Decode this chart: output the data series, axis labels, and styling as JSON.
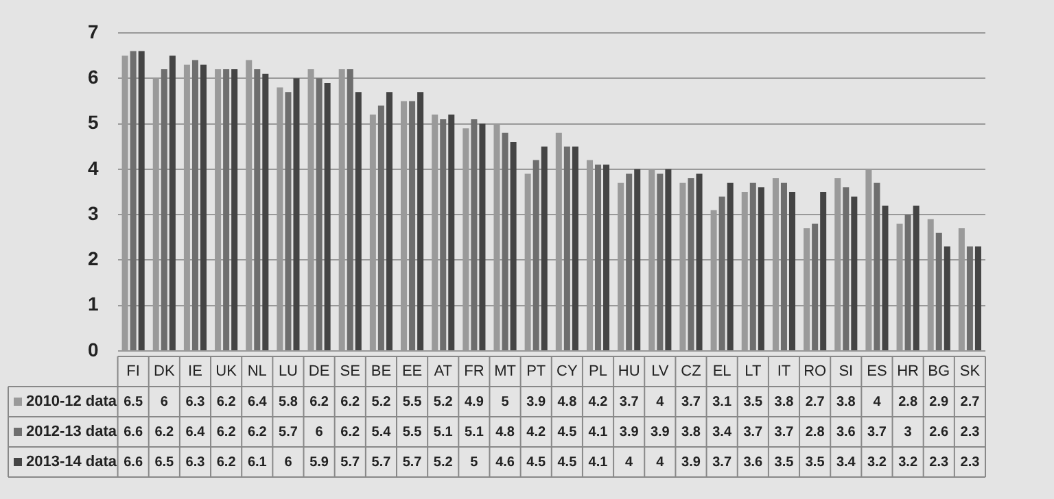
{
  "chart_data": {
    "type": "bar",
    "categories": [
      "FI",
      "DK",
      "IE",
      "UK",
      "NL",
      "LU",
      "DE",
      "SE",
      "BE",
      "EE",
      "AT",
      "FR",
      "MT",
      "PT",
      "CY",
      "PL",
      "HU",
      "LV",
      "CZ",
      "EL",
      "LT",
      "IT",
      "RO",
      "SI",
      "ES",
      "HR",
      "BG",
      "SK"
    ],
    "series": [
      {
        "name": "2010-12 data",
        "color": "#9a9a9a",
        "values": [
          6.5,
          6,
          6.3,
          6.2,
          6.4,
          5.8,
          6.2,
          6.2,
          5.2,
          5.5,
          5.2,
          4.9,
          5,
          3.9,
          4.8,
          4.2,
          3.7,
          4,
          3.7,
          3.1,
          3.5,
          3.8,
          2.7,
          3.8,
          4,
          2.8,
          2.9,
          2.7
        ]
      },
      {
        "name": "2012-13 data",
        "color": "#6e6e6e",
        "values": [
          6.6,
          6.2,
          6.4,
          6.2,
          6.2,
          5.7,
          6,
          6.2,
          5.4,
          5.5,
          5.1,
          5.1,
          4.8,
          4.2,
          4.5,
          4.1,
          3.9,
          3.9,
          3.8,
          3.4,
          3.7,
          3.7,
          2.8,
          3.6,
          3.7,
          3,
          2.6,
          2.3
        ]
      },
      {
        "name": "2013-14 data",
        "color": "#444444",
        "values": [
          6.6,
          6.5,
          6.3,
          6.2,
          6.1,
          6,
          5.9,
          5.7,
          5.7,
          5.7,
          5.2,
          5,
          4.6,
          4.5,
          4.5,
          4.1,
          4,
          4,
          3.9,
          3.7,
          3.6,
          3.5,
          3.5,
          3.4,
          3.2,
          3.2,
          2.3,
          2.3
        ]
      }
    ],
    "ylim": [
      0,
      7
    ],
    "yticks": [
      0,
      1,
      2,
      3,
      4,
      5,
      6,
      7
    ],
    "grid": "y",
    "legend": "bottom left",
    "data_labels": true
  }
}
